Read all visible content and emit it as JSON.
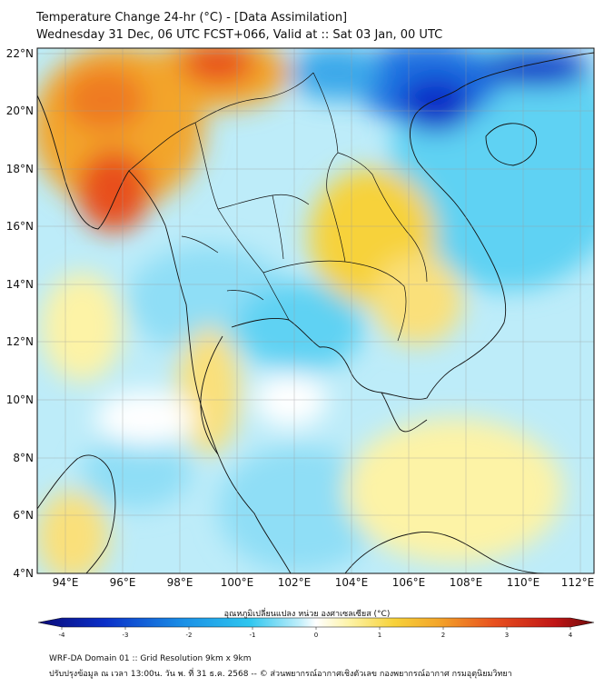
{
  "header": {
    "title_line1": "Temperature Change 24-hr (°C) - [Data Assimilation]",
    "title_line2": "Wednesday 31 Dec, 06 UTC FCST+066, Valid at :: Sat 03 Jan, 00 UTC"
  },
  "map": {
    "lat_labels": [
      "22°N",
      "20°N",
      "18°N",
      "16°N",
      "14°N",
      "12°N",
      "10°N",
      "8°N",
      "6°N",
      "4°N"
    ],
    "lon_labels": [
      "94°E",
      "96°E",
      "98°E",
      "100°E",
      "102°E",
      "104°E",
      "106°E",
      "108°E",
      "110°E",
      "112°E"
    ],
    "lat_range": [
      4,
      22.2
    ],
    "lon_range": [
      93,
      112.5
    ],
    "field": "temperature change 24-hr",
    "colors": {
      "strong_cooling": "#0a2fc8",
      "cooling": "#2ec6ef",
      "slight_cooling": "#9fe6f8",
      "neutral": "#ffffff",
      "slight_warming": "#fdf3a6",
      "warming": "#f7d23a",
      "strong_warming": "#e8501e",
      "coastline": "#111111"
    }
  },
  "colorbar": {
    "title": "อุณหภูมิเปลี่ยนแปลง หน่วย องศาเซลเซียส (°C)",
    "ticks": [
      "-4",
      "-3",
      "-2",
      "-1",
      "0",
      "1",
      "2",
      "3",
      "4"
    ],
    "range": [
      -4,
      4
    ]
  },
  "footer": {
    "line1": "WRF-DA Domain 01 :: Grid Resolution 9km x 9km",
    "line2": "ปรับปรุงข้อมูล ณ เวลา 13:00น. วัน พ. ที่ 31 ธ.ค. 2568 -- © ส่วนพยากรณ์อากาศเชิงตัวเลข กองพยากรณ์อากาศ กรมอุตุนิยมวิทยา"
  }
}
